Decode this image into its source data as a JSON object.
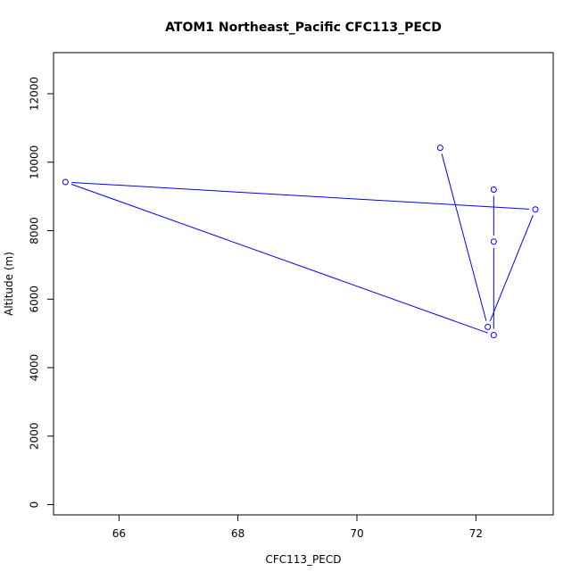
{
  "chart_data": {
    "type": "line",
    "title": "ATOM1 Northeast_Pacific CFC113_PECD",
    "xlabel": "CFC113_PECD",
    "ylabel": "Altitude (m)",
    "xlim": [
      64.9,
      73.3
    ],
    "ylim": [
      -300,
      13200
    ],
    "xticks": [
      66,
      68,
      70,
      72
    ],
    "yticks": [
      0,
      2000,
      4000,
      6000,
      8000,
      10000,
      12000
    ],
    "series_color": "#0000ff",
    "markers": "open-circle",
    "grid": false,
    "points": [
      {
        "x": 71.4,
        "y": 10420
      },
      {
        "x": 72.2,
        "y": 5190
      },
      {
        "x": 73.0,
        "y": 8620
      },
      {
        "x": 65.1,
        "y": 9420
      },
      {
        "x": 72.3,
        "y": 4950
      },
      {
        "x": 72.3,
        "y": 7680
      },
      {
        "x": 72.3,
        "y": 9200
      }
    ]
  }
}
